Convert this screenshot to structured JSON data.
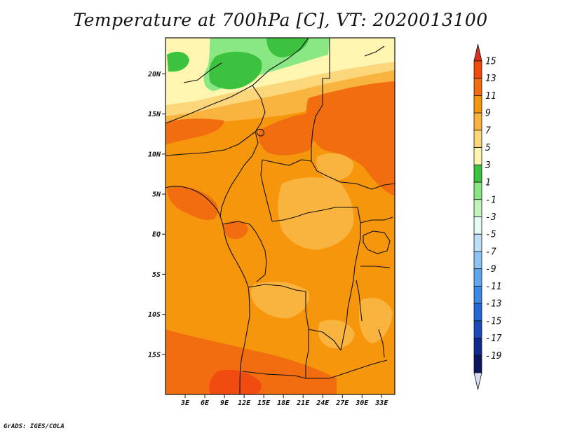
{
  "title": "Temperature at 700hPa [C], VT: 2020013100",
  "credit": "GrADS: IGES/COLA",
  "map": {
    "lat_ticks": [
      "20N",
      "15N",
      "10N",
      "5N",
      "EQ",
      "5S",
      "10S",
      "15S"
    ],
    "lon_ticks": [
      "3E",
      "6E",
      "9E",
      "12E",
      "15E",
      "18E",
      "21E",
      "24E",
      "27E",
      "30E",
      "33E"
    ],
    "lat_values": [
      20,
      15,
      10,
      5,
      0,
      -5,
      -10,
      -15
    ],
    "lon_values": [
      3,
      6,
      9,
      12,
      15,
      18,
      21,
      24,
      27,
      30,
      33
    ],
    "lat_range": [
      -20,
      24.5
    ],
    "lon_range": [
      0,
      35
    ]
  },
  "legend": {
    "labels": [
      "15",
      "13",
      "11",
      "9",
      "7",
      "5",
      "3",
      "1",
      "-1",
      "-3",
      "-5",
      "-7",
      "-9",
      "-11",
      "-13",
      "-15",
      "-17",
      "-19"
    ],
    "colors": [
      "#d7301f",
      "#f04c0f",
      "#f26c10",
      "#f5960d",
      "#f9b43f",
      "#fcd67a",
      "#fef6b0",
      "#3cc23e",
      "#8ae884",
      "#c2f4bc",
      "#e6faf8",
      "#bde0f8",
      "#8cc4f4",
      "#5ea6ee",
      "#3c88e4",
      "#2467d6",
      "#1a49b8",
      "#0f2a8c",
      "#0a1660",
      "#d8ddf4"
    ]
  },
  "field_colors": {
    "t15": "#f04c0f",
    "t13": "#f26c10",
    "t11": "#f5960d",
    "t9": "#f9b43f",
    "t7": "#fcd67a",
    "t5": "#fef6b0",
    "t3": "#8ae884",
    "t1": "#3cc23e"
  }
}
